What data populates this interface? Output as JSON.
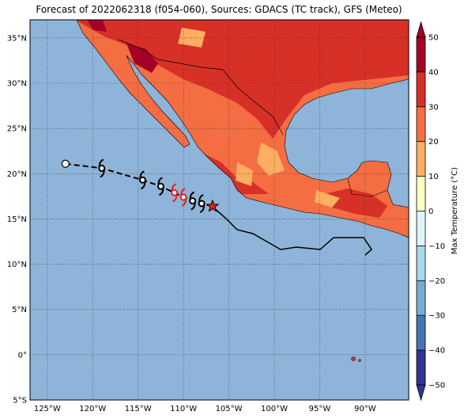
{
  "title": "Forecast of 2022062318 (f054-060), Sources: GDACS (TC track), GFS (Meteo)",
  "map": {
    "xlim": [
      -126.9,
      -85.2
    ],
    "ylim": [
      -5,
      37
    ],
    "xticks": [
      {
        "value": -125,
        "label": "125°W"
      },
      {
        "value": -120,
        "label": "120°W"
      },
      {
        "value": -115,
        "label": "115°W"
      },
      {
        "value": -110,
        "label": "110°W"
      },
      {
        "value": -105,
        "label": "105°W"
      },
      {
        "value": -100,
        "label": "100°W"
      },
      {
        "value": -95,
        "label": "95°W"
      },
      {
        "value": -90,
        "label": "90°W"
      }
    ],
    "yticks": [
      {
        "value": 35,
        "label": "35°N"
      },
      {
        "value": 30,
        "label": "30°N"
      },
      {
        "value": 25,
        "label": "25°N"
      },
      {
        "value": 20,
        "label": "20°N"
      },
      {
        "value": 15,
        "label": "15°N"
      },
      {
        "value": 10,
        "label": "10°N"
      },
      {
        "value": 5,
        "label": "5°N"
      },
      {
        "value": 0,
        "label": "0°"
      },
      {
        "value": -5,
        "label": "5°S"
      }
    ],
    "track": {
      "lon": [
        -123,
        -119,
        -114.5,
        -112.5,
        -111,
        -110,
        -109,
        -108,
        -106.8
      ],
      "lat": [
        21.1,
        20.6,
        19.3,
        18.6,
        17.9,
        17.4,
        17.0,
        16.7,
        16.4
      ]
    }
  },
  "colorbar": {
    "label": "Max Temperature (°C)",
    "lim": [
      -50,
      50
    ],
    "ticks": [
      {
        "value": -50,
        "label": "−50"
      },
      {
        "value": -40,
        "label": "−40"
      },
      {
        "value": -30,
        "label": "−30"
      },
      {
        "value": -20,
        "label": "−20"
      },
      {
        "value": -10,
        "label": "−10"
      },
      0,
      10,
      20,
      30,
      40,
      50
    ],
    "colors": [
      "#313695",
      "#4575b4",
      "#74add1",
      "#abd9e9",
      "#e0f3f8",
      "#ffffbf",
      "#fdae61",
      "#f46d43",
      "#d73027",
      "#a50026"
    ]
  }
}
